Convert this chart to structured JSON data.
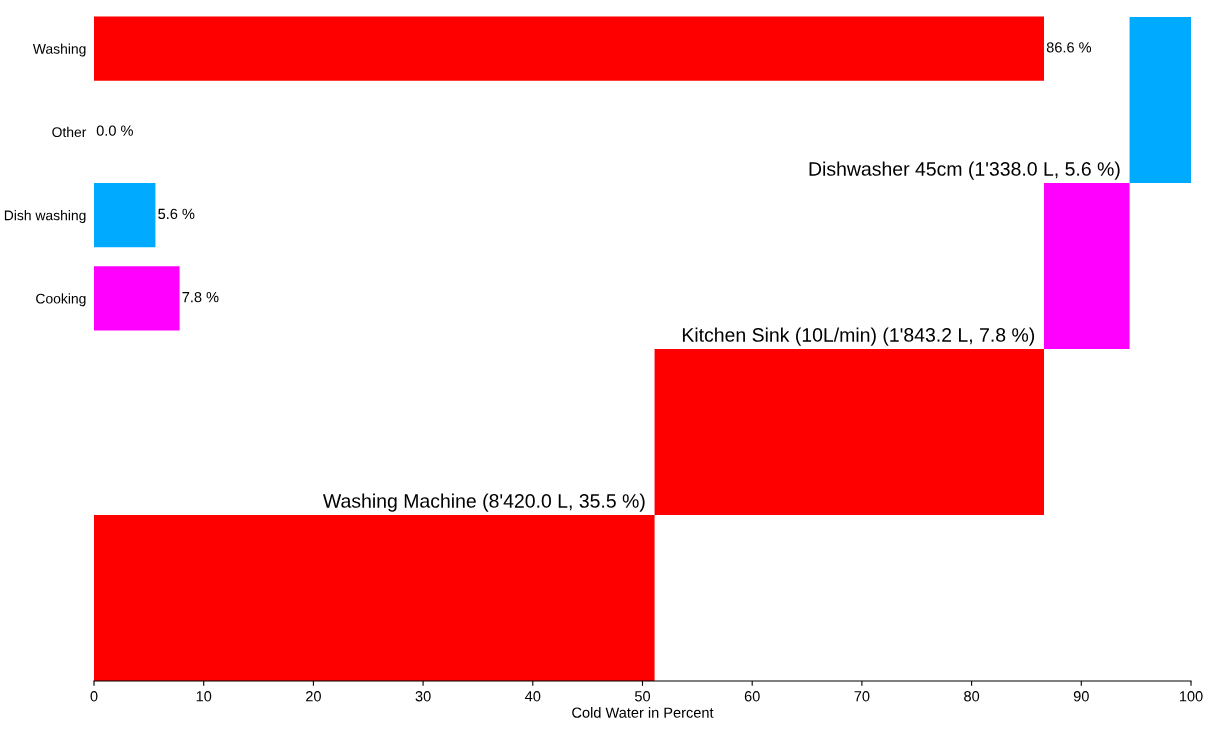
{
  "chart_data": [
    {
      "type": "bar",
      "orientation": "horizontal",
      "categories": [
        null,
        null,
        null,
        null
      ],
      "base": [
        94.4,
        86.6,
        51.1,
        0
      ],
      "values": [
        5.6,
        7.8,
        35.5,
        51.1
      ],
      "colors": [
        "#00aaff",
        "#ff00ff",
        "#ff0000",
        "#ff0000"
      ],
      "xlim": [
        0,
        100
      ],
      "xticks": [
        0,
        10,
        20,
        30,
        40,
        50,
        60,
        70,
        80,
        90,
        100
      ],
      "xlabel": "Cold Water in Percent",
      "tick_labels": "x",
      "annotations": [
        "Dishwasher 45cm (1'338.0 L, 5.6 %)",
        "Kitchen Sink (10L/min) (1'843.2 L, 7.8 %)",
        "Washing Machine (8'420.0 L, 35.5 %)"
      ]
    },
    {
      "type": "bar",
      "orientation": "horizontal",
      "categories": [
        "Washing",
        "Other",
        "Dish washing",
        "Cooking"
      ],
      "values": [
        86.6,
        0.0,
        5.6,
        7.8
      ],
      "colors": [
        "#ff0000",
        "#ff0000",
        "#00aaff",
        "#ff00ff"
      ],
      "value_labels": [
        "86.6 %",
        "0.0 %",
        "5.6 %",
        "7.8 %"
      ],
      "xlim": [
        0,
        100
      ],
      "tick_labels": "y"
    }
  ]
}
